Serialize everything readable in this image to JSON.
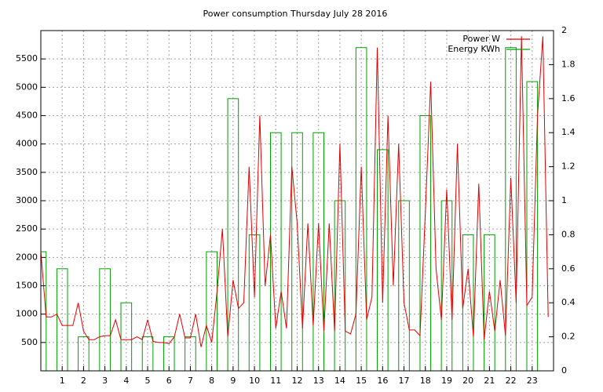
{
  "chart_data": {
    "type": "line",
    "title": "Power consumption Thursday July 28 2016",
    "xlim": [
      0,
      24
    ],
    "xticks": [
      1,
      2,
      3,
      4,
      5,
      6,
      7,
      8,
      9,
      10,
      11,
      12,
      13,
      14,
      15,
      16,
      17,
      18,
      19,
      20,
      21,
      22,
      23
    ],
    "ylim": [
      0,
      6000
    ],
    "yticks": [
      500,
      1000,
      1500,
      2000,
      2500,
      3000,
      3500,
      4000,
      4500,
      5000,
      5500
    ],
    "y2lim": [
      0,
      2
    ],
    "y2ticks": [
      0,
      0.2,
      0.4,
      0.6,
      0.8,
      1,
      1.2,
      1.4,
      1.6,
      1.8,
      2
    ],
    "grid": true,
    "legend": "upper right",
    "series": [
      {
        "name": "Power W",
        "color": "#e00000",
        "x": [
          0,
          0.25,
          0.5,
          0.75,
          1,
          1.25,
          1.5,
          1.75,
          2,
          2.25,
          2.5,
          2.75,
          3,
          3.25,
          3.5,
          3.75,
          4,
          4.25,
          4.5,
          4.75,
          5,
          5.25,
          5.5,
          5.75,
          6,
          6.25,
          6.5,
          6.75,
          7,
          7.25,
          7.5,
          7.75,
          8,
          8.25,
          8.5,
          8.75,
          9,
          9.25,
          9.5,
          9.75,
          10,
          10.25,
          10.5,
          10.75,
          11,
          11.25,
          11.5,
          11.75,
          12,
          12.25,
          12.5,
          12.75,
          13,
          13.25,
          13.5,
          13.75,
          14,
          14.25,
          14.5,
          14.75,
          15,
          15.25,
          15.5,
          15.75,
          16,
          16.25,
          16.5,
          16.75,
          17,
          17.25,
          17.5,
          17.75,
          18,
          18.25,
          18.5,
          18.75,
          19,
          19.25,
          19.5,
          19.75,
          20,
          20.25,
          20.5,
          20.75,
          21,
          21.25,
          21.5,
          21.75,
          22,
          22.25,
          22.5,
          22.75,
          23,
          23.25,
          23.5,
          23.75
        ],
        "values": [
          2100,
          950,
          950,
          1000,
          800,
          800,
          800,
          1200,
          700,
          550,
          550,
          600,
          620,
          620,
          900,
          550,
          550,
          550,
          600,
          550,
          900,
          520,
          500,
          500,
          480,
          600,
          1000,
          580,
          580,
          1000,
          420,
          800,
          500,
          1400,
          2500,
          600,
          1600,
          1100,
          1200,
          3600,
          1300,
          4500,
          1500,
          2400,
          750,
          1400,
          750,
          3600,
          2600,
          750,
          2600,
          800,
          2600,
          700,
          2600,
          700,
          4000,
          700,
          650,
          1000,
          3600,
          900,
          1300,
          5700,
          1200,
          4500,
          1500,
          4000,
          1200,
          720,
          720,
          620,
          2800,
          5100,
          1800,
          900,
          3200,
          900,
          4000,
          1100,
          1800,
          600,
          3300,
          550,
          1400,
          700,
          1600,
          620,
          3400,
          1200,
          5900,
          1150,
          1300,
          4500,
          5900,
          950
        ]
      },
      {
        "name": "Energy KWh",
        "color": "#00a000",
        "axis": "y2",
        "x": [
          0,
          1,
          2,
          3,
          4,
          5,
          6,
          7,
          8,
          9,
          10,
          11,
          12,
          13,
          14,
          15,
          16,
          17,
          18,
          19,
          20,
          21,
          22,
          23
        ],
        "values": [
          0.7,
          0.6,
          0.2,
          0.6,
          0.4,
          0.2,
          0.2,
          0.2,
          0.7,
          1.6,
          0.8,
          1.4,
          1.4,
          1.4,
          1.0,
          1.9,
          1.3,
          1.0,
          1.5,
          1.0,
          0.8,
          0.8,
          1.9,
          1.7
        ]
      }
    ]
  }
}
